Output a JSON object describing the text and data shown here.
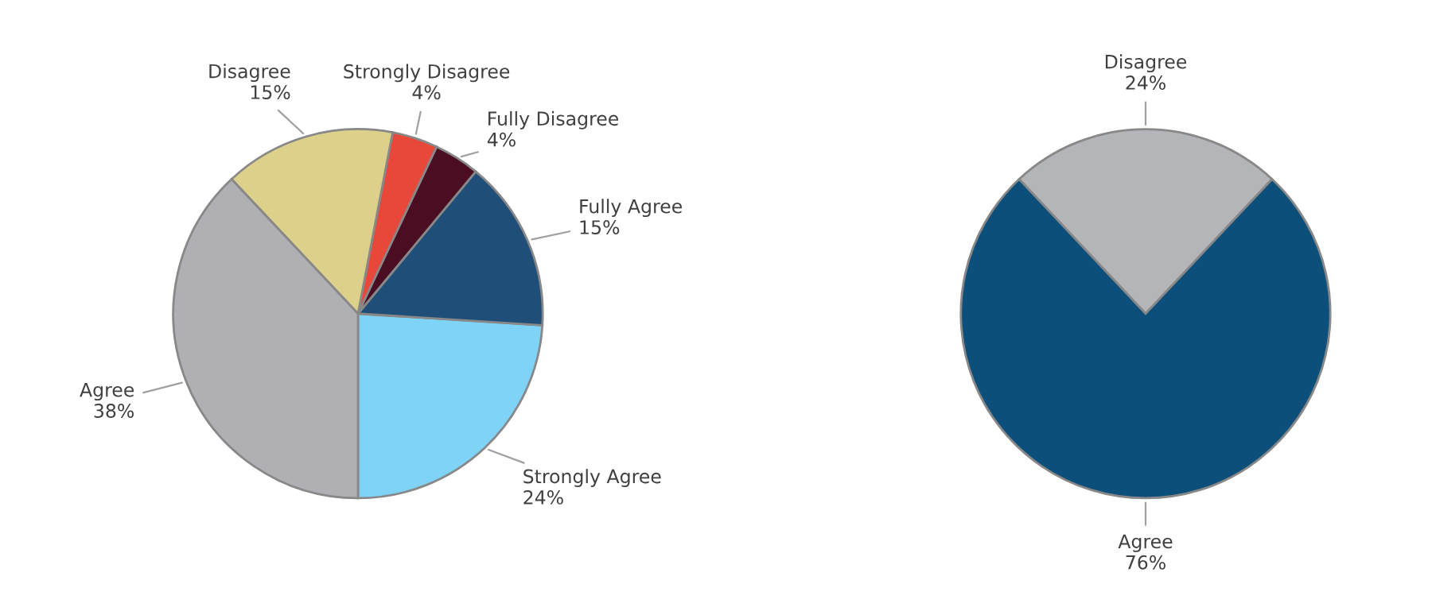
{
  "chart_data": [
    {
      "type": "pie",
      "categories": [
        "Strongly Agree",
        "Fully Agree",
        "Fully Disagree",
        "Strongly Disagree",
        "Disagree",
        "Agree"
      ],
      "values": [
        24,
        15,
        4,
        4,
        15,
        38
      ],
      "value_labels": [
        "24%",
        "15%",
        "4%",
        "4%",
        "15%",
        "38%"
      ],
      "colors": [
        "#7fd3f7",
        "#1f4e79",
        "#4a0d22",
        "#e8483a",
        "#ddd08a",
        "#b0b0b4"
      ]
    },
    {
      "type": "pie",
      "categories": [
        "Disagree",
        "Agree"
      ],
      "values": [
        24,
        76
      ],
      "value_labels": [
        "24%",
        "76%"
      ],
      "colors": [
        "#b4b5b9",
        "#0b4f7a"
      ]
    }
  ]
}
